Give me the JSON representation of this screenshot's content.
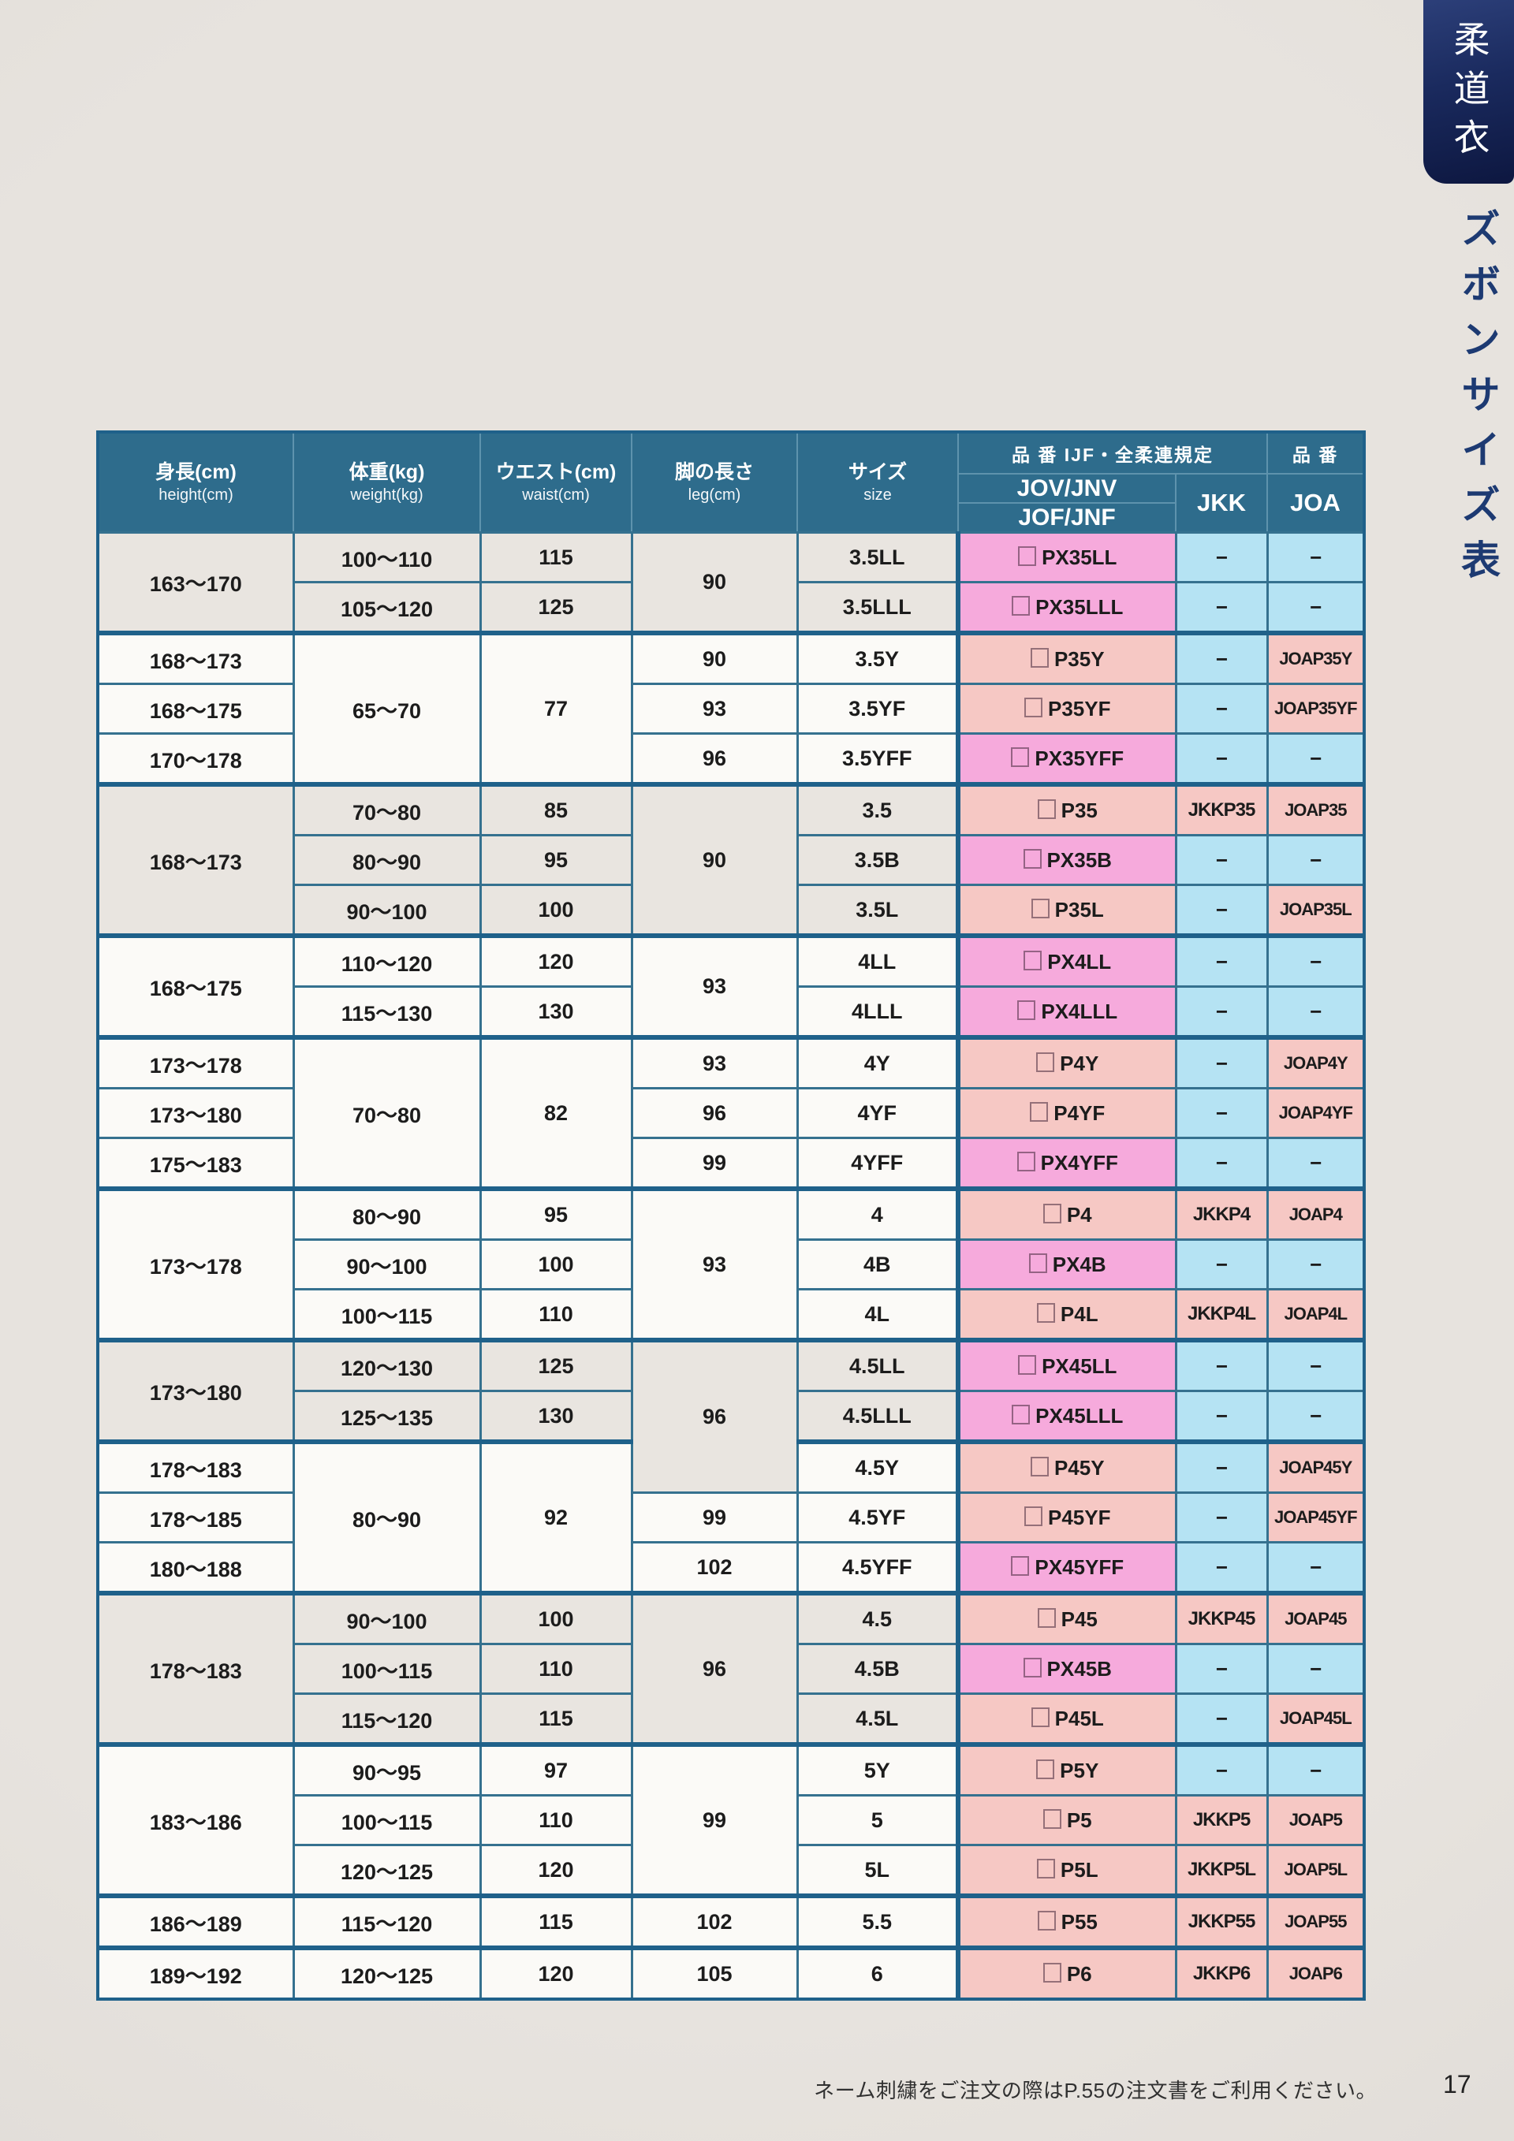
{
  "page": {
    "footer_note": "ネーム刺繍をご注文の際はP.55の注文書をご利用ください。",
    "page_number": "17",
    "bg_color": "#e7e3de"
  },
  "sidebar": {
    "tab_label": "柔道衣",
    "section_label": "ズボンサイズ表",
    "tab_color": "#1a2a5e",
    "section_label_color": "#1d3a72"
  },
  "table": {
    "colors": {
      "header_teal": "#2e6c8c",
      "border_teal": "#1f618a",
      "code_px_pink": "#f6aadc",
      "code_p_salmon": "#f6c8c4",
      "dash_blue": "#b5e3f3",
      "row_beige": "#e9e5e0",
      "row_white": "#fbfaf7"
    },
    "header": {
      "height_ja": "身長(cm)",
      "height_en": "height(cm)",
      "weight_ja": "体重(kg)",
      "weight_en": "weight(kg)",
      "waist_ja": "ウエスト(cm)",
      "waist_en": "waist(cm)",
      "leg_ja": "脚の長さ",
      "leg_en": "leg(cm)",
      "size_ja": "サイズ",
      "size_en": "size",
      "code_group_ijf": "品 番  IJF・全柔連規定",
      "code_group": "品 番",
      "jov": "JOV/JNV",
      "jof": "JOF/JNF",
      "jkk": "JKK",
      "joa": "JOA"
    },
    "rows": [
      {
        "tint": "b",
        "thick": false,
        "h": [
          "163〜170",
          2
        ],
        "w": "100〜110",
        "wa": "115",
        "l": [
          "90",
          2
        ],
        "s": "3.5LL",
        "c1": "PX35LL",
        "c2": "−",
        "c3": "−"
      },
      {
        "tint": "b",
        "thick": false,
        "w": "105〜120",
        "wa": "125",
        "s": "3.5LLL",
        "c1": "PX35LLL",
        "c2": "−",
        "c3": "−"
      },
      {
        "tint": "w",
        "thick": true,
        "h": "168〜173",
        "w": [
          "65〜70",
          3
        ],
        "wa": [
          "77",
          3
        ],
        "l": "90",
        "s": "3.5Y",
        "c1": "P35Y",
        "c2": "−",
        "c3": "JOAP35Y"
      },
      {
        "tint": "w",
        "thick": false,
        "h": "168〜175",
        "l": "93",
        "s": "3.5YF",
        "c1": "P35YF",
        "c2": "−",
        "c3": "JOAP35YF"
      },
      {
        "tint": "w",
        "thick": false,
        "h": "170〜178",
        "l": "96",
        "s": "3.5YFF",
        "c1": "PX35YFF",
        "c2": "−",
        "c3": "−"
      },
      {
        "tint": "b",
        "thick": true,
        "h": [
          "168〜173",
          3
        ],
        "w": "70〜80",
        "wa": "85",
        "l": [
          "90",
          3
        ],
        "s": "3.5",
        "c1": "P35",
        "c2": "JKKP35",
        "c3": "JOAP35"
      },
      {
        "tint": "b",
        "thick": false,
        "w": "80〜90",
        "wa": "95",
        "s": "3.5B",
        "c1": "PX35B",
        "c2": "−",
        "c3": "−"
      },
      {
        "tint": "b",
        "thick": false,
        "w": "90〜100",
        "wa": "100",
        "s": "3.5L",
        "c1": "P35L",
        "c2": "−",
        "c3": "JOAP35L"
      },
      {
        "tint": "w",
        "thick": true,
        "h": [
          "168〜175",
          2
        ],
        "w": "110〜120",
        "wa": "120",
        "l": [
          "93",
          2
        ],
        "s": "4LL",
        "c1": "PX4LL",
        "c2": "−",
        "c3": "−"
      },
      {
        "tint": "w",
        "thick": false,
        "w": "115〜130",
        "wa": "130",
        "s": "4LLL",
        "c1": "PX4LLL",
        "c2": "−",
        "c3": "−"
      },
      {
        "tint": "w",
        "thick": true,
        "h": "173〜178",
        "w": [
          "70〜80",
          3
        ],
        "wa": [
          "82",
          3
        ],
        "l": "93",
        "s": "4Y",
        "c1": "P4Y",
        "c2": "−",
        "c3": "JOAP4Y"
      },
      {
        "tint": "w",
        "thick": false,
        "h": "173〜180",
        "l": "96",
        "s": "4YF",
        "c1": "P4YF",
        "c2": "−",
        "c3": "JOAP4YF"
      },
      {
        "tint": "w",
        "thick": false,
        "h": "175〜183",
        "l": "99",
        "s": "4YFF",
        "c1": "PX4YFF",
        "c2": "−",
        "c3": "−"
      },
      {
        "tint": "w",
        "thick": true,
        "h": [
          "173〜178",
          3
        ],
        "w": "80〜90",
        "wa": "95",
        "l": [
          "93",
          3
        ],
        "s": "4",
        "c1": "P4",
        "c2": "JKKP4",
        "c3": "JOAP4"
      },
      {
        "tint": "w",
        "thick": false,
        "w": "90〜100",
        "wa": "100",
        "s": "4B",
        "c1": "PX4B",
        "c2": "−",
        "c3": "−"
      },
      {
        "tint": "w",
        "thick": false,
        "w": "100〜115",
        "wa": "110",
        "s": "4L",
        "c1": "P4L",
        "c2": "JKKP4L",
        "c3": "JOAP4L"
      },
      {
        "tint": "b",
        "thick": true,
        "h": [
          "173〜180",
          2
        ],
        "w": "120〜130",
        "wa": "125",
        "l": [
          "96",
          3
        ],
        "s": "4.5LL",
        "c1": "PX45LL",
        "c2": "−",
        "c3": "−"
      },
      {
        "tint": "b",
        "thick": false,
        "w": "125〜135",
        "wa": "130",
        "s": "4.5LLL",
        "c1": "PX45LLL",
        "c2": "−",
        "c3": "−"
      },
      {
        "tint": "w",
        "thick": true,
        "h": "178〜183",
        "w": [
          "80〜90",
          3
        ],
        "wa": [
          "92",
          3
        ],
        "s": "4.5Y",
        "c1": "P45Y",
        "c2": "−",
        "c3": "JOAP45Y"
      },
      {
        "tint": "w",
        "thick": false,
        "h": "178〜185",
        "l": "99",
        "s": "4.5YF",
        "c1": "P45YF",
        "c2": "−",
        "c3": "JOAP45YF"
      },
      {
        "tint": "w",
        "thick": false,
        "h": "180〜188",
        "l": "102",
        "s": "4.5YFF",
        "c1": "PX45YFF",
        "c2": "−",
        "c3": "−"
      },
      {
        "tint": "b",
        "thick": true,
        "h": [
          "178〜183",
          3
        ],
        "w": "90〜100",
        "wa": "100",
        "l": [
          "96",
          3
        ],
        "s": "4.5",
        "c1": "P45",
        "c2": "JKKP45",
        "c3": "JOAP45"
      },
      {
        "tint": "b",
        "thick": false,
        "w": "100〜115",
        "wa": "110",
        "s": "4.5B",
        "c1": "PX45B",
        "c2": "−",
        "c3": "−"
      },
      {
        "tint": "b",
        "thick": false,
        "w": "115〜120",
        "wa": "115",
        "s": "4.5L",
        "c1": "P45L",
        "c2": "−",
        "c3": "JOAP45L"
      },
      {
        "tint": "w",
        "thick": true,
        "h": [
          "183〜186",
          3
        ],
        "w": "90〜95",
        "wa": "97",
        "l": [
          "99",
          3
        ],
        "s": "5Y",
        "c1": "P5Y",
        "c2": "−",
        "c3": "−"
      },
      {
        "tint": "w",
        "thick": false,
        "w": "100〜115",
        "wa": "110",
        "s": "5",
        "c1": "P5",
        "c2": "JKKP5",
        "c3": "JOAP5"
      },
      {
        "tint": "w",
        "thick": false,
        "w": "120〜125",
        "wa": "120",
        "s": "5L",
        "c1": "P5L",
        "c2": "JKKP5L",
        "c3": "JOAP5L"
      },
      {
        "tint": "w",
        "thick": true,
        "h": "186〜189",
        "w": "115〜120",
        "wa": "115",
        "l": "102",
        "s": "5.5",
        "c1": "P55",
        "c2": "JKKP55",
        "c3": "JOAP55"
      },
      {
        "tint": "w",
        "thick": true,
        "h": "189〜192",
        "w": "120〜125",
        "wa": "120",
        "l": "105",
        "s": "6",
        "c1": "P6",
        "c2": "JKKP6",
        "c3": "JOAP6"
      }
    ]
  }
}
